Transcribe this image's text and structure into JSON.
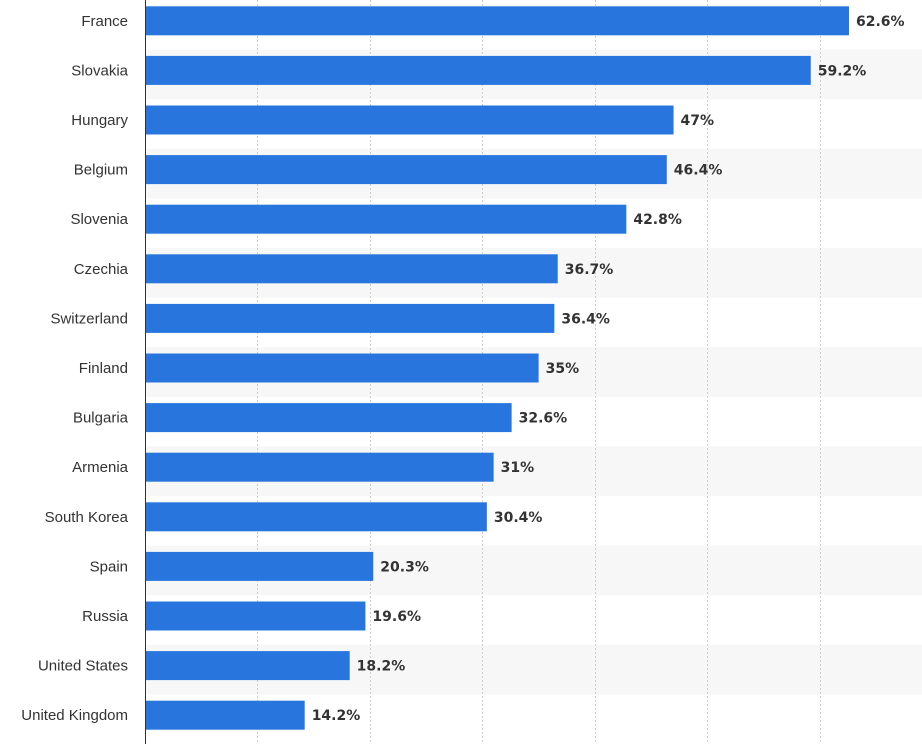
{
  "chart_data": {
    "type": "bar",
    "orientation": "horizontal",
    "categories": [
      "France",
      "Slovakia",
      "Hungary",
      "Belgium",
      "Slovenia",
      "Czechia",
      "Switzerland",
      "Finland",
      "Bulgaria",
      "Armenia",
      "South Korea",
      "Spain",
      "Russia",
      "United States",
      "United Kingdom"
    ],
    "values": [
      62.6,
      59.2,
      47,
      46.4,
      42.8,
      36.7,
      36.4,
      35,
      32.6,
      31,
      30.4,
      20.3,
      19.6,
      18.2,
      14.2
    ],
    "value_labels": [
      "62.6%",
      "59.2%",
      "47%",
      "46.4%",
      "42.8%",
      "36.7%",
      "36.4%",
      "35%",
      "32.6%",
      "31%",
      "30.4%",
      "20.3%",
      "19.6%",
      "18.2%",
      "14.2%"
    ],
    "xlim": [
      0,
      70
    ],
    "grid": true,
    "colors": {
      "bar": "#2876dd",
      "band": "#f7f7f7",
      "grid": "#cccccc",
      "axis": "#333333",
      "text": "#333333"
    }
  }
}
